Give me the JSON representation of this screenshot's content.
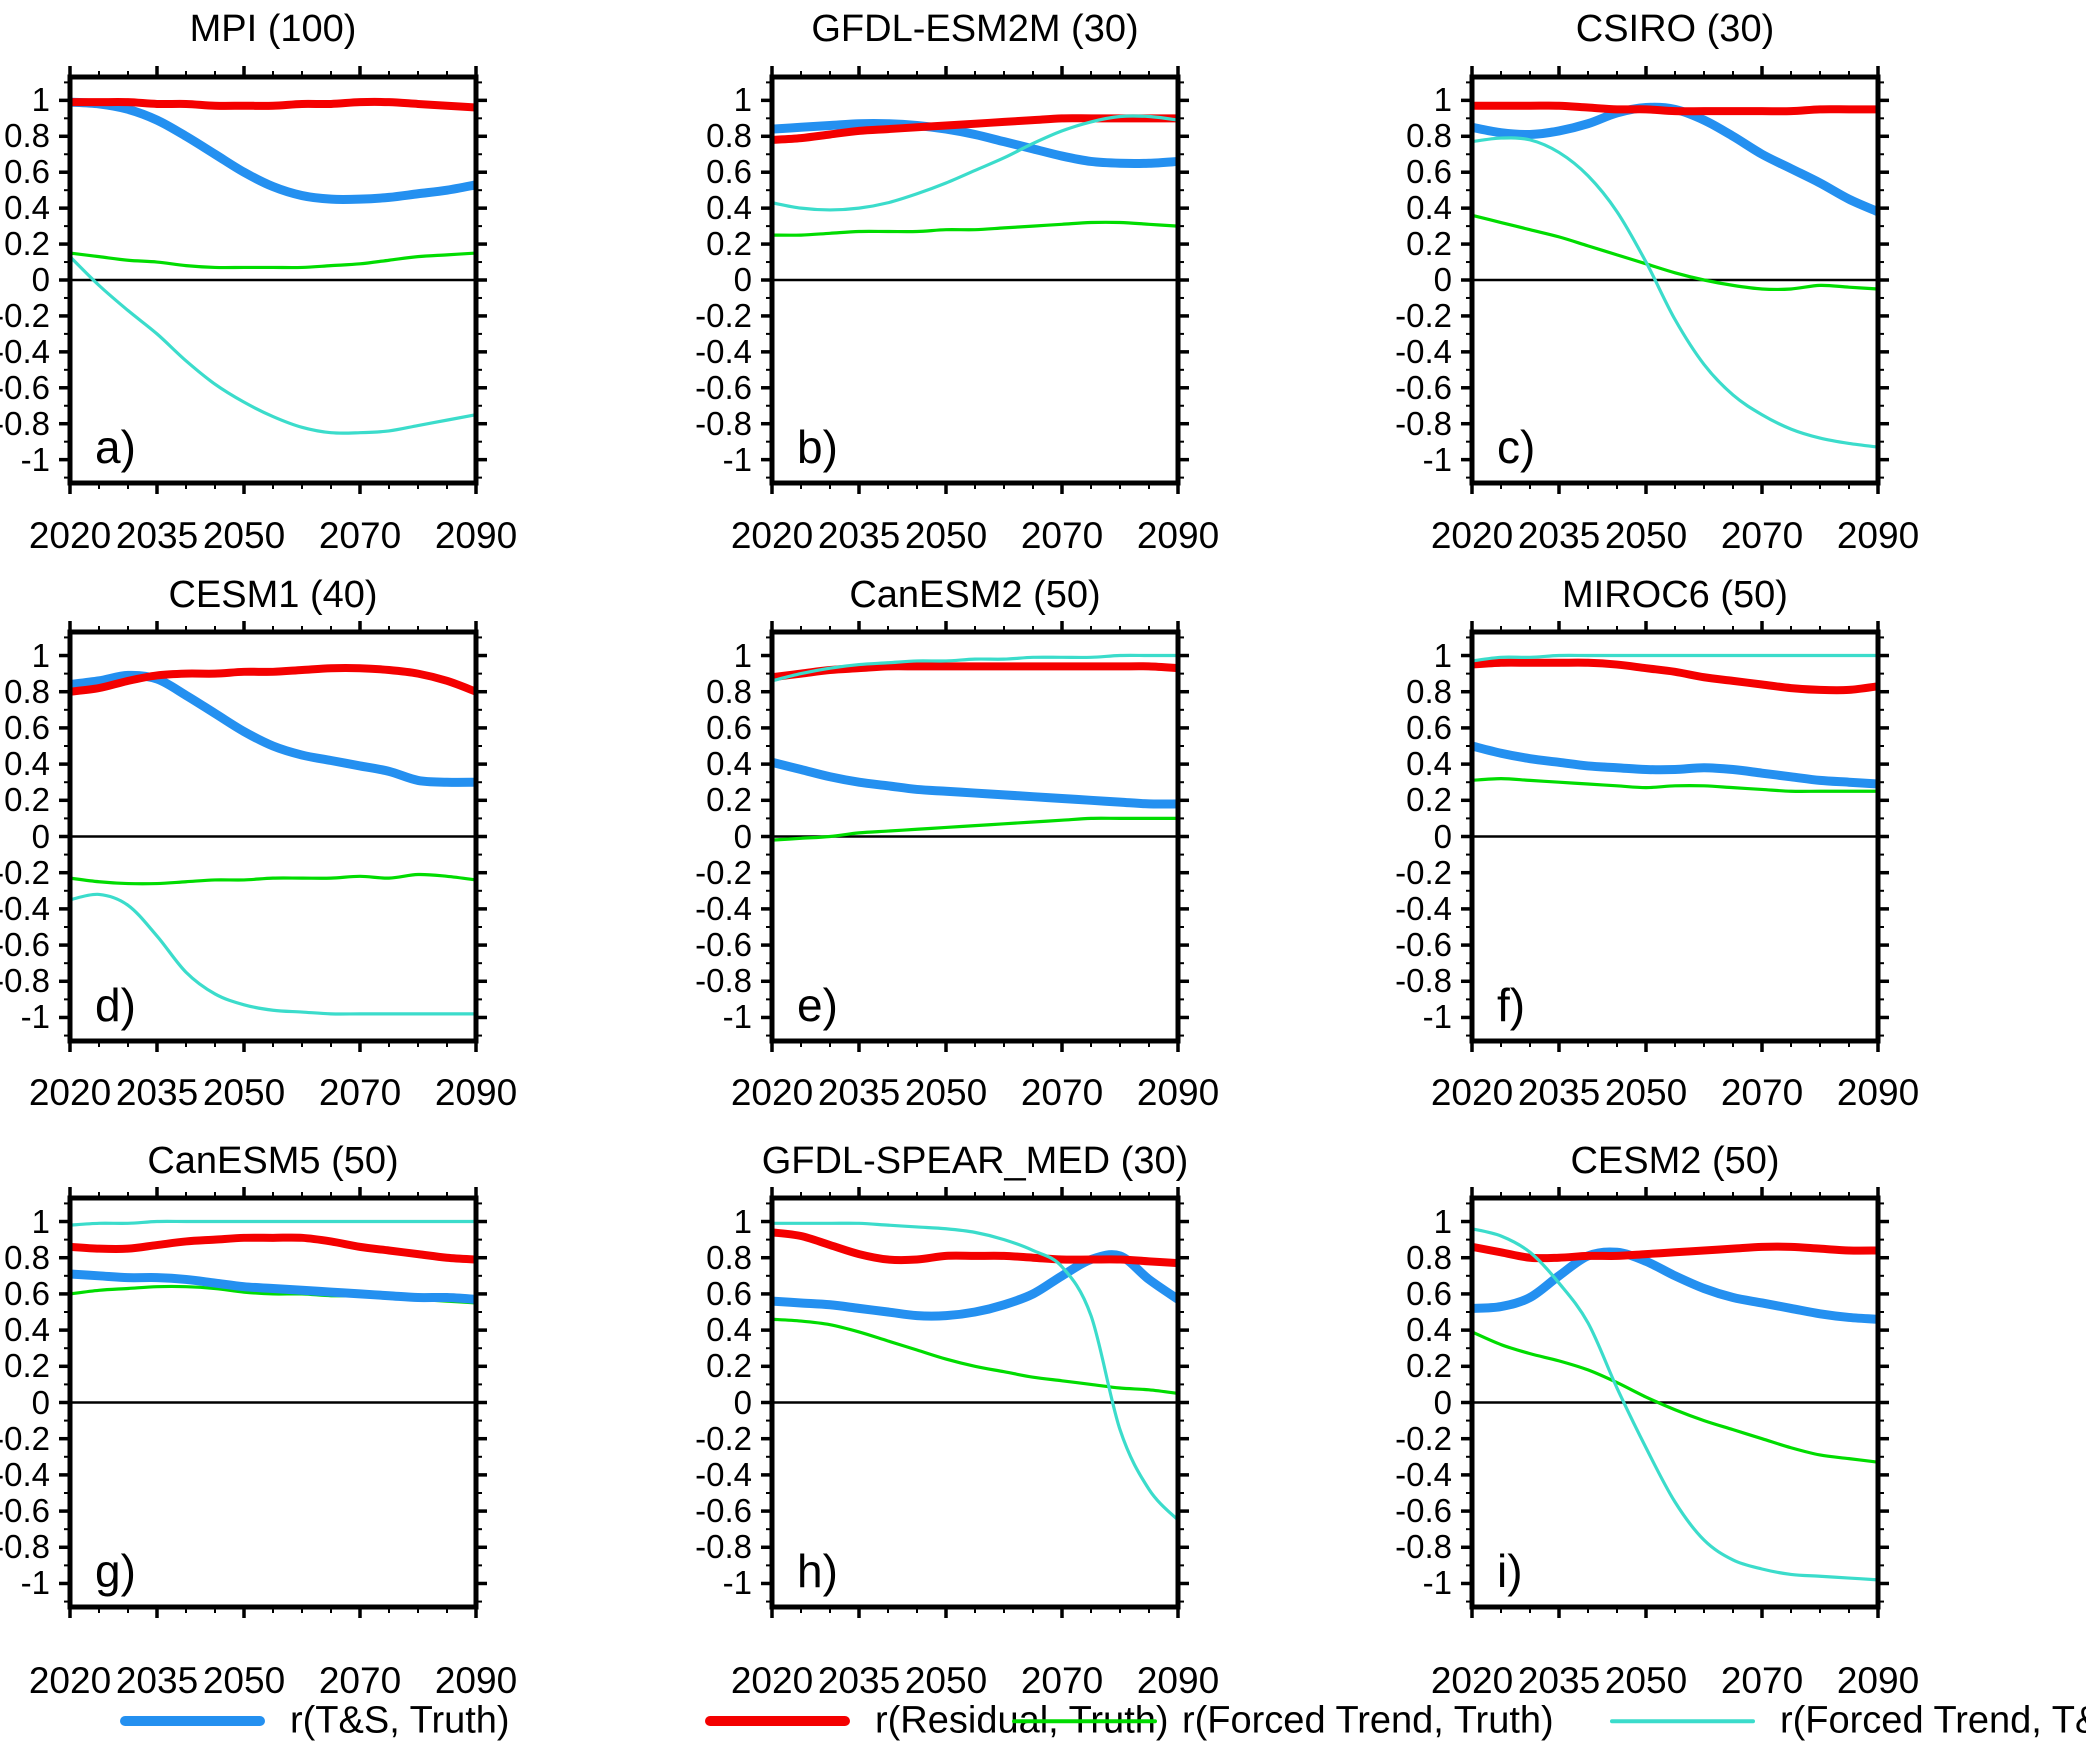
{
  "colors": {
    "blue": "#2490F0",
    "red": "#F40000",
    "green": "#00DC00",
    "cyan": "#3BDCCB",
    "axis": "#000000"
  },
  "legend": {
    "entries": [
      {
        "key": "ts_truth",
        "label": "r(T&S, Truth)",
        "color": "blue",
        "thick": true
      },
      {
        "key": "residual_truth",
        "label": "r(Residual, Truth)",
        "color": "red",
        "thick": true
      },
      {
        "key": "forced_truth",
        "label": "r(Forced Trend, Truth)",
        "color": "green",
        "thick": false
      },
      {
        "key": "forced_ts",
        "label": "r(Forced Trend, T&S)",
        "color": "cyan",
        "thick": false
      }
    ]
  },
  "chart_data": {
    "type": "line",
    "x": [
      2020,
      2025,
      2030,
      2035,
      2040,
      2045,
      2050,
      2055,
      2060,
      2065,
      2070,
      2075,
      2080,
      2085,
      2090
    ],
    "x_major_ticks": [
      2020,
      2035,
      2050,
      2070,
      2090
    ],
    "x_tick_labels": [
      "2020",
      "2035",
      "2050",
      "2070",
      "2090"
    ],
    "x_minor_ticks": [
      2025,
      2030,
      2040,
      2045,
      2055,
      2060,
      2065,
      2075,
      2080,
      2085
    ],
    "xlim": [
      2020,
      2090
    ],
    "ylim": [
      -1.13,
      1.13
    ],
    "y_major_ticks": [
      1,
      0.8,
      0.6,
      0.4,
      0.2,
      0,
      -0.2,
      -0.4,
      -0.6,
      -0.8,
      -1
    ],
    "y_tick_labels": [
      "1",
      "0.8",
      "0.6",
      "0.4",
      "0.2",
      "0",
      "-0.2",
      "-0.4",
      "-0.6",
      "-0.8",
      "-1"
    ],
    "y_minor_ticks": [
      1.1,
      0.9,
      0.7,
      0.5,
      0.3,
      0.1,
      -0.1,
      -0.3,
      -0.5,
      -0.7,
      -0.9,
      -1.1
    ],
    "grid": false,
    "zero_line": true,
    "legend_position": "bottom",
    "series_order": [
      "forced_truth",
      "ts_truth",
      "residual_truth",
      "forced_ts"
    ],
    "panels": [
      {
        "id": "a",
        "letter": "a)",
        "title": "MPI (100)",
        "series": {
          "ts_truth": [
            0.99,
            0.98,
            0.95,
            0.89,
            0.8,
            0.7,
            0.6,
            0.52,
            0.47,
            0.45,
            0.45,
            0.46,
            0.48,
            0.5,
            0.53
          ],
          "residual_truth": [
            0.99,
            0.99,
            0.99,
            0.98,
            0.98,
            0.97,
            0.97,
            0.97,
            0.98,
            0.98,
            0.99,
            0.99,
            0.98,
            0.97,
            0.96
          ],
          "forced_truth": [
            0.15,
            0.13,
            0.11,
            0.1,
            0.08,
            0.07,
            0.07,
            0.07,
            0.07,
            0.08,
            0.09,
            0.11,
            0.13,
            0.14,
            0.15
          ],
          "forced_ts": [
            0.13,
            -0.03,
            -0.17,
            -0.3,
            -0.45,
            -0.58,
            -0.68,
            -0.76,
            -0.82,
            -0.85,
            -0.85,
            -0.84,
            -0.81,
            -0.78,
            -0.75
          ]
        }
      },
      {
        "id": "b",
        "letter": "b)",
        "title": "GFDL-ESM2M (30)",
        "series": {
          "ts_truth": [
            0.84,
            0.85,
            0.86,
            0.87,
            0.87,
            0.86,
            0.84,
            0.81,
            0.77,
            0.73,
            0.69,
            0.66,
            0.65,
            0.65,
            0.66
          ],
          "residual_truth": [
            0.78,
            0.79,
            0.81,
            0.83,
            0.84,
            0.85,
            0.86,
            0.87,
            0.88,
            0.89,
            0.9,
            0.9,
            0.9,
            0.9,
            0.9
          ],
          "forced_truth": [
            0.25,
            0.25,
            0.26,
            0.27,
            0.27,
            0.27,
            0.28,
            0.28,
            0.29,
            0.3,
            0.31,
            0.32,
            0.32,
            0.31,
            0.3
          ],
          "forced_ts": [
            0.43,
            0.4,
            0.39,
            0.4,
            0.43,
            0.48,
            0.54,
            0.61,
            0.68,
            0.76,
            0.83,
            0.88,
            0.91,
            0.91,
            0.89
          ]
        }
      },
      {
        "id": "c",
        "letter": "c)",
        "title": "CSIRO (30)",
        "series": {
          "ts_truth": [
            0.85,
            0.82,
            0.81,
            0.83,
            0.87,
            0.93,
            0.96,
            0.95,
            0.89,
            0.8,
            0.7,
            0.62,
            0.54,
            0.45,
            0.38
          ],
          "residual_truth": [
            0.97,
            0.97,
            0.97,
            0.97,
            0.96,
            0.95,
            0.95,
            0.94,
            0.94,
            0.94,
            0.94,
            0.94,
            0.95,
            0.95,
            0.95
          ],
          "forced_truth": [
            0.36,
            0.32,
            0.28,
            0.24,
            0.19,
            0.14,
            0.09,
            0.04,
            0.0,
            -0.03,
            -0.05,
            -0.05,
            -0.03,
            -0.04,
            -0.05
          ],
          "forced_ts": [
            0.77,
            0.79,
            0.78,
            0.71,
            0.58,
            0.38,
            0.1,
            -0.22,
            -0.47,
            -0.64,
            -0.75,
            -0.83,
            -0.88,
            -0.91,
            -0.93
          ]
        }
      },
      {
        "id": "d",
        "letter": "d)",
        "title": "CESM1 (40)",
        "series": {
          "ts_truth": [
            0.84,
            0.86,
            0.89,
            0.87,
            0.78,
            0.68,
            0.58,
            0.5,
            0.45,
            0.42,
            0.39,
            0.36,
            0.31,
            0.3,
            0.3
          ],
          "residual_truth": [
            0.8,
            0.82,
            0.86,
            0.89,
            0.9,
            0.9,
            0.91,
            0.91,
            0.92,
            0.93,
            0.93,
            0.92,
            0.9,
            0.86,
            0.8
          ],
          "forced_truth": [
            -0.23,
            -0.25,
            -0.26,
            -0.26,
            -0.25,
            -0.24,
            -0.24,
            -0.23,
            -0.23,
            -0.23,
            -0.22,
            -0.23,
            -0.21,
            -0.22,
            -0.24
          ],
          "forced_ts": [
            -0.35,
            -0.32,
            -0.38,
            -0.55,
            -0.75,
            -0.87,
            -0.93,
            -0.96,
            -0.97,
            -0.98,
            -0.98,
            -0.98,
            -0.98,
            -0.98,
            -0.98
          ]
        }
      },
      {
        "id": "e",
        "letter": "e)",
        "title": "CanESM2 (50)",
        "series": {
          "ts_truth": [
            0.41,
            0.37,
            0.33,
            0.3,
            0.28,
            0.26,
            0.25,
            0.24,
            0.23,
            0.22,
            0.21,
            0.2,
            0.19,
            0.18,
            0.18
          ],
          "residual_truth": [
            0.88,
            0.9,
            0.92,
            0.93,
            0.94,
            0.94,
            0.94,
            0.94,
            0.94,
            0.94,
            0.94,
            0.94,
            0.94,
            0.94,
            0.93
          ],
          "forced_truth": [
            -0.02,
            -0.01,
            0.0,
            0.02,
            0.03,
            0.04,
            0.05,
            0.06,
            0.07,
            0.08,
            0.09,
            0.1,
            0.1,
            0.1,
            0.1
          ],
          "forced_ts": [
            0.86,
            0.9,
            0.93,
            0.95,
            0.96,
            0.97,
            0.97,
            0.98,
            0.98,
            0.99,
            0.99,
            0.99,
            1.0,
            1.0,
            1.0
          ]
        }
      },
      {
        "id": "f",
        "letter": "f)",
        "title": "MIROC6 (50)",
        "series": {
          "ts_truth": [
            0.5,
            0.46,
            0.43,
            0.41,
            0.39,
            0.38,
            0.37,
            0.37,
            0.38,
            0.37,
            0.35,
            0.33,
            0.31,
            0.3,
            0.29
          ],
          "residual_truth": [
            0.95,
            0.96,
            0.96,
            0.96,
            0.96,
            0.95,
            0.93,
            0.91,
            0.88,
            0.86,
            0.84,
            0.82,
            0.81,
            0.81,
            0.83
          ],
          "forced_truth": [
            0.31,
            0.32,
            0.31,
            0.3,
            0.29,
            0.28,
            0.27,
            0.28,
            0.28,
            0.27,
            0.26,
            0.25,
            0.25,
            0.25,
            0.25
          ],
          "forced_ts": [
            0.97,
            0.99,
            0.99,
            1.0,
            1.0,
            1.0,
            1.0,
            1.0,
            1.0,
            1.0,
            1.0,
            1.0,
            1.0,
            1.0,
            1.0
          ]
        }
      },
      {
        "id": "g",
        "letter": "g)",
        "title": "CanESM5 (50)",
        "series": {
          "ts_truth": [
            0.71,
            0.7,
            0.69,
            0.69,
            0.68,
            0.66,
            0.64,
            0.63,
            0.62,
            0.61,
            0.6,
            0.59,
            0.58,
            0.58,
            0.57
          ],
          "residual_truth": [
            0.86,
            0.85,
            0.85,
            0.87,
            0.89,
            0.9,
            0.91,
            0.91,
            0.91,
            0.89,
            0.86,
            0.84,
            0.82,
            0.8,
            0.79
          ],
          "forced_truth": [
            0.6,
            0.62,
            0.63,
            0.64,
            0.64,
            0.63,
            0.61,
            0.6,
            0.6,
            0.59,
            0.59,
            0.58,
            0.57,
            0.56,
            0.55
          ],
          "forced_ts": [
            0.98,
            0.99,
            0.99,
            1.0,
            1.0,
            1.0,
            1.0,
            1.0,
            1.0,
            1.0,
            1.0,
            1.0,
            1.0,
            1.0,
            1.0
          ]
        }
      },
      {
        "id": "h",
        "letter": "h)",
        "title": "GFDL-SPEAR_MED (30)",
        "series": {
          "ts_truth": [
            0.56,
            0.55,
            0.54,
            0.52,
            0.5,
            0.48,
            0.48,
            0.5,
            0.54,
            0.6,
            0.7,
            0.79,
            0.81,
            0.68,
            0.57
          ],
          "residual_truth": [
            0.94,
            0.92,
            0.87,
            0.82,
            0.79,
            0.79,
            0.81,
            0.81,
            0.81,
            0.8,
            0.79,
            0.79,
            0.79,
            0.78,
            0.77
          ],
          "forced_truth": [
            0.46,
            0.45,
            0.43,
            0.39,
            0.34,
            0.29,
            0.24,
            0.2,
            0.17,
            0.14,
            0.12,
            0.1,
            0.08,
            0.07,
            0.05
          ],
          "forced_ts": [
            0.99,
            0.99,
            0.99,
            0.99,
            0.98,
            0.97,
            0.96,
            0.94,
            0.9,
            0.84,
            0.75,
            0.48,
            -0.15,
            -0.48,
            -0.65
          ]
        }
      },
      {
        "id": "i",
        "letter": "i)",
        "title": "CESM2 (50)",
        "series": {
          "ts_truth": [
            0.52,
            0.53,
            0.58,
            0.7,
            0.81,
            0.83,
            0.78,
            0.7,
            0.63,
            0.58,
            0.55,
            0.52,
            0.49,
            0.47,
            0.46
          ],
          "residual_truth": [
            0.86,
            0.83,
            0.8,
            0.8,
            0.81,
            0.81,
            0.82,
            0.83,
            0.84,
            0.85,
            0.86,
            0.86,
            0.85,
            0.84,
            0.84
          ],
          "forced_truth": [
            0.39,
            0.32,
            0.27,
            0.23,
            0.18,
            0.11,
            0.03,
            -0.04,
            -0.1,
            -0.15,
            -0.2,
            -0.25,
            -0.29,
            -0.31,
            -0.33
          ],
          "forced_ts": [
            0.96,
            0.92,
            0.83,
            0.66,
            0.44,
            0.08,
            -0.25,
            -0.55,
            -0.76,
            -0.87,
            -0.92,
            -0.95,
            -0.96,
            -0.97,
            -0.98
          ]
        }
      }
    ]
  }
}
